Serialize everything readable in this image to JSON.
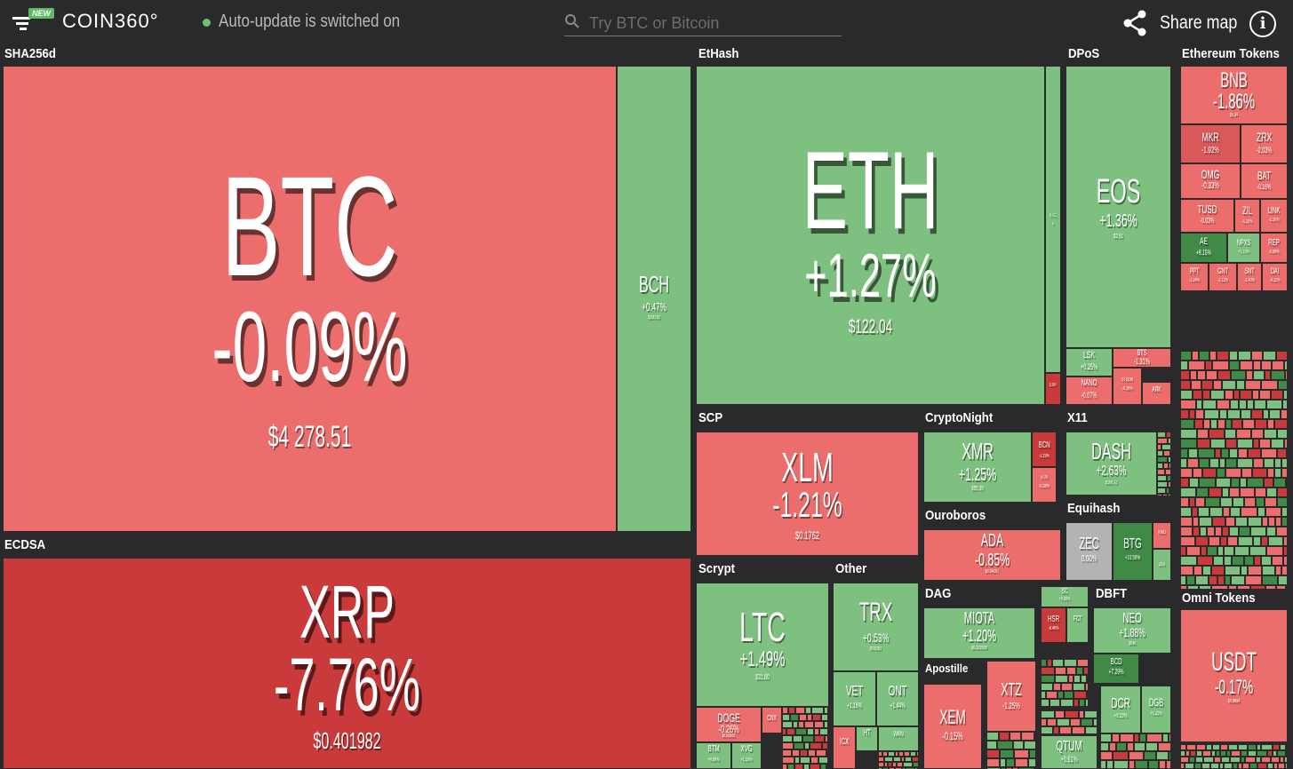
{
  "header": {
    "badge": "NEW",
    "logo": "COIN360°",
    "status": "Auto-update is switched on",
    "search_placeholder": "Try BTC or Bitcoin",
    "share_label": "Share map",
    "info": "i"
  },
  "groups": {
    "sha256d": "SHA256d",
    "ecdsa": "ECDSA",
    "ethash": "EtHash",
    "dpos": "DPoS",
    "eth_tokens": "Ethereum Tokens",
    "scp": "SCP",
    "cryptonight": "CryptoNight",
    "x11": "X11",
    "ouroboros": "Ouroboros",
    "equihash": "Equihash",
    "scrypt": "Scrypt",
    "other": "Other",
    "dag": "DAG",
    "dbft": "DBFT",
    "apostille": "Apostille",
    "omni": "Omni Tokens"
  },
  "coins": {
    "btc": {
      "symbol": "BTC",
      "change": "-0.09%",
      "price": "$4 278.51",
      "color": "#ec6e6c"
    },
    "bch": {
      "symbol": "BCH",
      "change": "+0.47%",
      "price": "$100.93",
      "color": "#7dc07f"
    },
    "xrp": {
      "symbol": "XRP",
      "change": "-7.76%",
      "price": "$0.401982",
      "color": "#c93a3a"
    },
    "eth": {
      "symbol": "ETH",
      "change": "+1.27%",
      "price": "$122.04",
      "color": "#7dc07f"
    },
    "etc": {
      "symbol": "ETC",
      "change": "+",
      "price": "",
      "color": "#7dc07f"
    },
    "exp": {
      "symbol": "EXP",
      "change": "",
      "price": "",
      "color": "#c93a3a"
    },
    "eos": {
      "symbol": "EOS",
      "change": "+1.36%",
      "price": "$2.61",
      "color": "#7dc07f"
    },
    "lsk": {
      "symbol": "LSK",
      "change": "+0.25%",
      "price": "",
      "color": "#7dc07f"
    },
    "bts": {
      "symbol": "BTS",
      "change": "-1.31%",
      "price": "",
      "color": "#ec6e6c"
    },
    "nano": {
      "symbol": "NANO",
      "change": "-0.07%",
      "price": "",
      "color": "#ec6e6c"
    },
    "steem": {
      "symbol": "STEEM",
      "change": "-0.16%",
      "price": "",
      "color": "#ec6e6c"
    },
    "ark": {
      "symbol": "ARK",
      "change": "-",
      "price": "",
      "color": "#ec6e6c"
    },
    "xlm": {
      "symbol": "XLM",
      "change": "-1.21%",
      "price": "$0.1762",
      "color": "#ec6e6c"
    },
    "xmr": {
      "symbol": "XMR",
      "change": "+1.25%",
      "price": "$55.30",
      "color": "#7dc07f"
    },
    "bcn": {
      "symbol": "BCN",
      "change": "-1.19%",
      "price": "",
      "color": "#c93a3a"
    },
    "etn": {
      "symbol": "ETN",
      "change": "-0.28%",
      "price": "",
      "color": "#ec6e6c"
    },
    "dash": {
      "symbol": "DASH",
      "change": "+2.63%",
      "price": "$100.72",
      "color": "#7dc07f"
    },
    "ada": {
      "symbol": "ADA",
      "change": "-0.85%",
      "price": "$0.04207",
      "color": "#ec6e6c"
    },
    "zec": {
      "symbol": "ZEC",
      "change": "0.00%",
      "price": "",
      "color": "#b3b3b3"
    },
    "btg": {
      "symbol": "BTG",
      "change": "+10.56%",
      "price": "",
      "color": "#3f8a45"
    },
    "kmd": {
      "symbol": "KMD",
      "change": "",
      "price": "",
      "color": "#ec6e6c"
    },
    "zen": {
      "symbol": "ZEN",
      "change": "",
      "price": "",
      "color": "#7dc07f"
    },
    "ltc": {
      "symbol": "LTC",
      "change": "+1.49%",
      "price": "$31.80",
      "color": "#7dc07f"
    },
    "doge": {
      "symbol": "DOGE",
      "change": "-0.26%",
      "price": "$0.002601",
      "color": "#ec6e6c"
    },
    "cnx": {
      "symbol": "CNX",
      "change": "",
      "price": "",
      "color": "#ec6e6c"
    },
    "btm": {
      "symbol": "BTM",
      "change": "+0.89%",
      "price": "",
      "color": "#7dc07f"
    },
    "xvg": {
      "symbol": "XVG",
      "change": "+1.10%",
      "price": "",
      "color": "#7dc07f"
    },
    "trx": {
      "symbol": "TRX",
      "change": "+0.53%",
      "price": "$0.01361",
      "color": "#7dc07f"
    },
    "vet": {
      "symbol": "VET",
      "change": "+1.16%",
      "price": "",
      "color": "#7dc07f"
    },
    "ont": {
      "symbol": "ONT",
      "change": "+1.44%",
      "price": "",
      "color": "#7dc07f"
    },
    "icx": {
      "symbol": "ICX",
      "change": "",
      "price": "",
      "color": "#ec6e6c"
    },
    "ht": {
      "symbol": "HT",
      "change": "",
      "price": "",
      "color": "#7dc07f"
    },
    "wan": {
      "symbol": "WAN",
      "change": "",
      "price": "",
      "color": "#7dc07f"
    },
    "miota": {
      "symbol": "MIOTA",
      "change": "+1.20%",
      "price": "$0.329399",
      "color": "#7dc07f"
    },
    "sc": {
      "symbol": "SC",
      "change": "+0.09%",
      "price": "",
      "color": "#7dc07f"
    },
    "hsr": {
      "symbol": "HSR",
      "change": "-8.46%",
      "price": "",
      "color": "#c93a3a"
    },
    "fct": {
      "symbol": "FCT",
      "change": "",
      "price": "",
      "color": "#7dc07f"
    },
    "neo": {
      "symbol": "NEO",
      "change": "+1.88%",
      "price": "$8.46",
      "color": "#7dc07f"
    },
    "bcd": {
      "symbol": "BCD",
      "change": "+7.29%",
      "price": "",
      "color": "#3f8a45"
    },
    "xem": {
      "symbol": "XEM",
      "change": "-0.15%",
      "price": "",
      "color": "#ec6e6c"
    },
    "xtz": {
      "symbol": "XTZ",
      "change": "-1.25%",
      "price": "",
      "color": "#ec6e6c"
    },
    "dcr": {
      "symbol": "DCR",
      "change": "+0.12%",
      "price": "",
      "color": "#7dc07f"
    },
    "dgb": {
      "symbol": "DGB",
      "change": "+1.22%",
      "price": "",
      "color": "#7dc07f"
    },
    "qtum": {
      "symbol": "QTUM",
      "change": "+0.61%",
      "price": "",
      "color": "#7dc07f"
    },
    "bnb": {
      "symbol": "BNB",
      "change": "-1.86%",
      "price": "$5.34",
      "color": "#ec6e6c"
    },
    "mkr": {
      "symbol": "MKR",
      "change": "-1.92%",
      "price": "",
      "color": "#d95858"
    },
    "zrx": {
      "symbol": "ZRX",
      "change": "-2.03%",
      "price": "",
      "color": "#ec6e6c"
    },
    "omg": {
      "symbol": "OMG",
      "change": "-0.33%",
      "price": "",
      "color": "#ec6e6c"
    },
    "bat": {
      "symbol": "BAT",
      "change": "-0.16%",
      "price": "",
      "color": "#ec6e6c"
    },
    "tusd": {
      "symbol": "TUSD",
      "change": "-0.03%",
      "price": "",
      "color": "#ec6e6c"
    },
    "zil": {
      "symbol": "ZIL",
      "change": "-1.20%",
      "price": "",
      "color": "#ec6e6c"
    },
    "link": {
      "symbol": "LINK",
      "change": "-1.10%",
      "price": "",
      "color": "#ec6e6c"
    },
    "ae": {
      "symbol": "AE",
      "change": "+8.15%",
      "price": "",
      "color": "#3f8a45"
    },
    "npxs": {
      "symbol": "NPXS",
      "change": "+1.70%",
      "price": "",
      "color": "#7dc07f"
    },
    "rep": {
      "symbol": "REP",
      "change": "-0.59%",
      "price": "",
      "color": "#ec6e6c"
    },
    "ppt": {
      "symbol": "PPT",
      "change": "-1.24%",
      "price": "",
      "color": "#ec6e6c"
    },
    "gnt": {
      "symbol": "GNT",
      "change": "-2.12%",
      "price": "",
      "color": "#ec6e6c"
    },
    "snt": {
      "symbol": "SNT",
      "change": "-1.40%",
      "price": "",
      "color": "#ec6e6c"
    },
    "dai": {
      "symbol": "DAI",
      "change": "-0.12%",
      "price": "",
      "color": "#ec6e6c"
    },
    "usdt": {
      "symbol": "USDT",
      "change": "-0.17%",
      "price": "$0.9694",
      "color": "#ec6e6c"
    }
  }
}
